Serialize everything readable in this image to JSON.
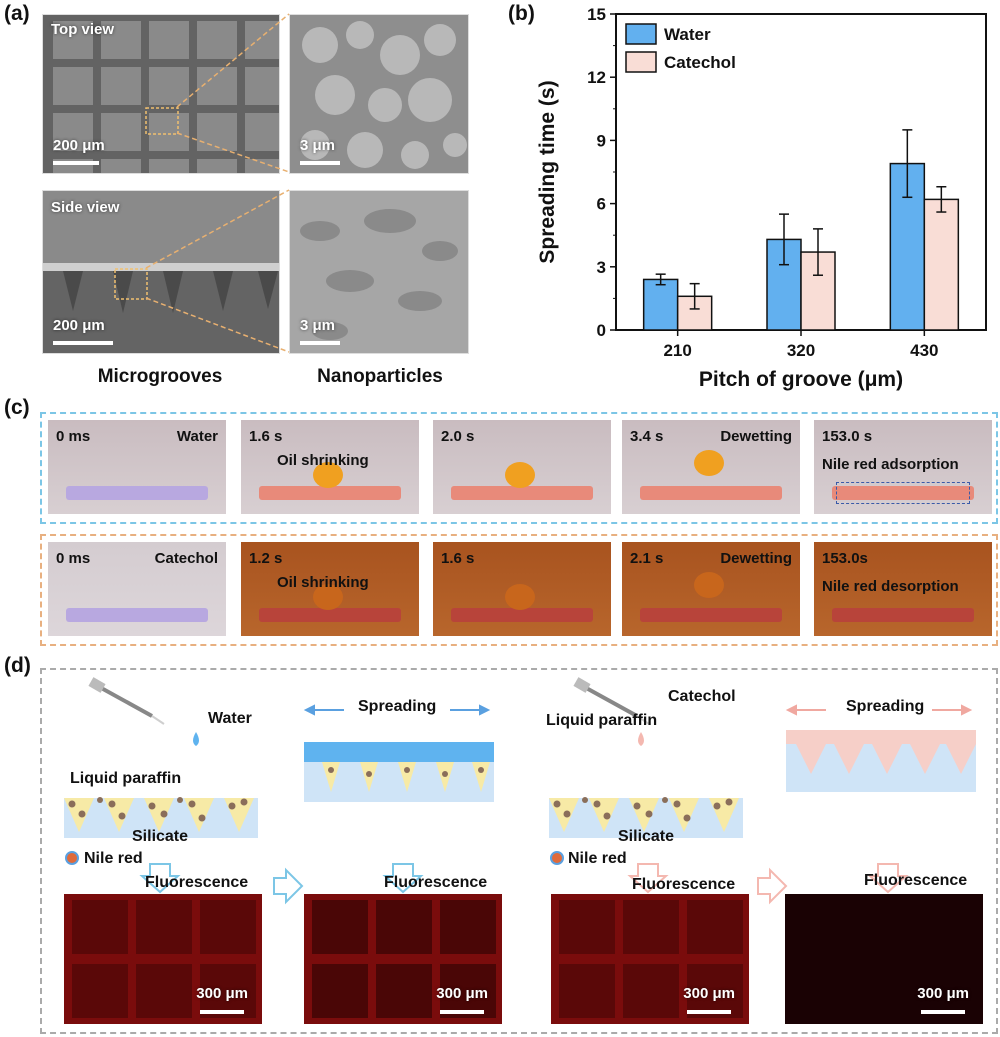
{
  "panel_labels": {
    "a": "(a)",
    "b": "(b)",
    "c": "(c)",
    "d": "(d)"
  },
  "panel_a": {
    "top_view": "Top view",
    "side_view": "Side view",
    "scale_200": "200 μm",
    "scale_3": "3 μm",
    "caption_left": "Microgrooves",
    "caption_right": "Nanoparticles"
  },
  "chart_data": {
    "type": "bar",
    "xlabel": "Pitch of groove (μm)",
    "ylabel": "Spreading time (s)",
    "categories": [
      "210",
      "320",
      "430"
    ],
    "ylim": [
      0,
      15
    ],
    "yticks": [
      "0",
      "3",
      "6",
      "9",
      "12",
      "15"
    ],
    "legend_position": "top-left",
    "series": [
      {
        "name": "Water",
        "values": [
          2.4,
          4.3,
          7.9
        ],
        "errors": [
          0.25,
          1.2,
          1.6
        ],
        "color": "#62b0ef"
      },
      {
        "name": "Catechol",
        "values": [
          1.6,
          3.7,
          6.2
        ],
        "errors": [
          0.6,
          1.1,
          0.6
        ],
        "color": "#f9ddd6"
      }
    ]
  },
  "panel_c": {
    "water_row": [
      {
        "time": "0 ms",
        "label": "Water"
      },
      {
        "time": "1.6 s",
        "label": "Oil shrinking"
      },
      {
        "time": "2.0 s",
        "label": ""
      },
      {
        "time": "3.4 s",
        "label": "Dewetting"
      },
      {
        "time": "153.0 s",
        "label": "Nile red adsorption"
      }
    ],
    "catechol_row": [
      {
        "time": "0 ms",
        "label": "Catechol"
      },
      {
        "time": "1.2 s",
        "label": "Oil shrinking"
      },
      {
        "time": "1.6 s",
        "label": ""
      },
      {
        "time": "2.1 s",
        "label": "Dewetting"
      },
      {
        "time": "153.0s",
        "label": "Nile red desorption"
      }
    ],
    "colors": {
      "water_border": "#7cc6e6",
      "catechol_border": "#e8b080"
    }
  },
  "panel_d": {
    "water": "Water",
    "catechol": "Catechol",
    "liquid_paraffin": "Liquid paraffin",
    "silicate": "Silicate",
    "nile_red": "Nile red",
    "spreading": "Spreading",
    "fluorescence": "Fluorescence",
    "scale_300": "300 μm"
  }
}
